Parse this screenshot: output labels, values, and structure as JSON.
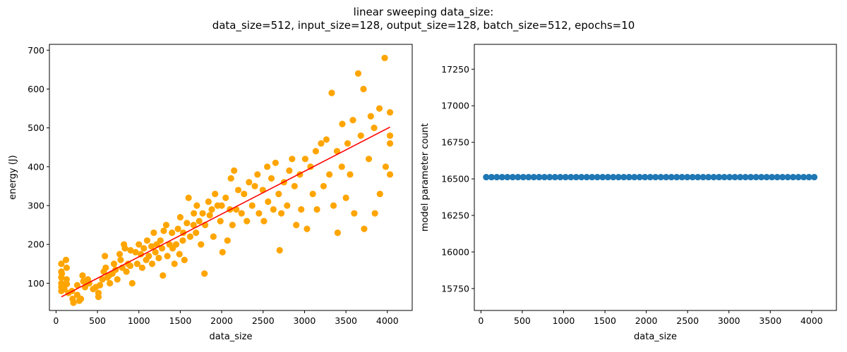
{
  "figure": {
    "title_line1": "linear sweeping data_size:",
    "title_line2": "data_size=512, input_size=128, output_size=128, batch_size=512, epochs=10"
  },
  "chart_data": [
    {
      "type": "scatter",
      "xlabel": "data_size",
      "ylabel": "energy (J)",
      "xlim": [
        -80,
        4300
      ],
      "ylim": [
        30,
        715
      ],
      "xticks": [
        0,
        500,
        1000,
        1500,
        2000,
        2500,
        3000,
        3500,
        4000
      ],
      "yticks": [
        100,
        200,
        300,
        400,
        500,
        600,
        700
      ],
      "grid": false,
      "series": [
        {
          "kind": "scatter",
          "color": "#ffa500",
          "points": [
            [
              64,
              150
            ],
            [
              64,
              130
            ],
            [
              64,
              115
            ],
            [
              64,
              100
            ],
            [
              64,
              90
            ],
            [
              64,
              80
            ],
            [
              70,
              125
            ],
            [
              80,
              95
            ],
            [
              100,
              85
            ],
            [
              120,
              160
            ],
            [
              128,
              140
            ],
            [
              128,
              110
            ],
            [
              130,
              98
            ],
            [
              150,
              75
            ],
            [
              192,
              80
            ],
            [
              200,
              60
            ],
            [
              210,
              50
            ],
            [
              256,
              70
            ],
            [
              256,
              95
            ],
            [
              280,
              55
            ],
            [
              300,
              60
            ],
            [
              320,
              120
            ],
            [
              330,
              105
            ],
            [
              350,
              90
            ],
            [
              384,
              110
            ],
            [
              400,
              100
            ],
            [
              448,
              85
            ],
            [
              480,
              90
            ],
            [
              512,
              65
            ],
            [
              512,
              75
            ],
            [
              530,
              95
            ],
            [
              560,
              110
            ],
            [
              576,
              130
            ],
            [
              590,
              170
            ],
            [
              600,
              140
            ],
            [
              620,
              115
            ],
            [
              640,
              120
            ],
            [
              650,
              100
            ],
            [
              680,
              125
            ],
            [
              700,
              150
            ],
            [
              720,
              135
            ],
            [
              740,
              110
            ],
            [
              768,
              175
            ],
            [
              780,
              160
            ],
            [
              800,
              140
            ],
            [
              820,
              200
            ],
            [
              832,
              190
            ],
            [
              850,
              130
            ],
            [
              870,
              150
            ],
            [
              896,
              145
            ],
            [
              900,
              185
            ],
            [
              920,
              100
            ],
            [
              960,
              180
            ],
            [
              980,
              150
            ],
            [
              1000,
              200
            ],
            [
              1024,
              175
            ],
            [
              1040,
              140
            ],
            [
              1060,
              190
            ],
            [
              1088,
              160
            ],
            [
              1100,
              210
            ],
            [
              1120,
              170
            ],
            [
              1152,
              195
            ],
            [
              1160,
              150
            ],
            [
              1180,
              230
            ],
            [
              1200,
              180
            ],
            [
              1216,
              200
            ],
            [
              1240,
              165
            ],
            [
              1260,
              210
            ],
            [
              1280,
              190
            ],
            [
              1290,
              120
            ],
            [
              1300,
              235
            ],
            [
              1330,
              250
            ],
            [
              1344,
              170
            ],
            [
              1370,
              200
            ],
            [
              1400,
              230
            ],
            [
              1408,
              190
            ],
            [
              1430,
              150
            ],
            [
              1450,
              200
            ],
            [
              1472,
              240
            ],
            [
              1490,
              175
            ],
            [
              1500,
              270
            ],
            [
              1530,
              210
            ],
            [
              1536,
              230
            ],
            [
              1550,
              160
            ],
            [
              1580,
              255
            ],
            [
              1600,
              320
            ],
            [
              1620,
              220
            ],
            [
              1660,
              250
            ],
            [
              1664,
              280
            ],
            [
              1690,
              230
            ],
            [
              1700,
              300
            ],
            [
              1728,
              260
            ],
            [
              1750,
              200
            ],
            [
              1770,
              280
            ],
            [
              1792,
              125
            ],
            [
              1800,
              250
            ],
            [
              1840,
              310
            ],
            [
              1856,
              275
            ],
            [
              1880,
              290
            ],
            [
              1900,
              220
            ],
            [
              1920,
              330
            ],
            [
              1950,
              300
            ],
            [
              1984,
              260
            ],
            [
              2000,
              300
            ],
            [
              2010,
              180
            ],
            [
              2048,
              320
            ],
            [
              2070,
              210
            ],
            [
              2100,
              290
            ],
            [
              2112,
              370
            ],
            [
              2130,
              250
            ],
            [
              2150,
              390
            ],
            [
              2176,
              290
            ],
            [
              2200,
              340
            ],
            [
              2240,
              280
            ],
            [
              2270,
              330
            ],
            [
              2304,
              260
            ],
            [
              2330,
              360
            ],
            [
              2368,
              300
            ],
            [
              2400,
              350
            ],
            [
              2432,
              380
            ],
            [
              2450,
              280
            ],
            [
              2496,
              340
            ],
            [
              2510,
              260
            ],
            [
              2550,
              400
            ],
            [
              2560,
              310
            ],
            [
              2600,
              370
            ],
            [
              2624,
              290
            ],
            [
              2650,
              410
            ],
            [
              2688,
              330
            ],
            [
              2700,
              185
            ],
            [
              2720,
              280
            ],
            [
              2752,
              360
            ],
            [
              2790,
              300
            ],
            [
              2816,
              390
            ],
            [
              2850,
              420
            ],
            [
              2880,
              350
            ],
            [
              2900,
              250
            ],
            [
              2944,
              380
            ],
            [
              2960,
              290
            ],
            [
              3008,
              420
            ],
            [
              3030,
              240
            ],
            [
              3072,
              400
            ],
            [
              3100,
              330
            ],
            [
              3136,
              440
            ],
            [
              3150,
              290
            ],
            [
              3200,
              460
            ],
            [
              3230,
              350
            ],
            [
              3264,
              470
            ],
            [
              3300,
              380
            ],
            [
              3328,
              590
            ],
            [
              3350,
              300
            ],
            [
              3392,
              440
            ],
            [
              3400,
              230
            ],
            [
              3450,
              400
            ],
            [
              3456,
              510
            ],
            [
              3500,
              320
            ],
            [
              3520,
              460
            ],
            [
              3550,
              380
            ],
            [
              3584,
              520
            ],
            [
              3600,
              280
            ],
            [
              3648,
              640
            ],
            [
              3680,
              480
            ],
            [
              3712,
              600
            ],
            [
              3720,
              240
            ],
            [
              3776,
              420
            ],
            [
              3800,
              530
            ],
            [
              3840,
              500
            ],
            [
              3850,
              280
            ],
            [
              3904,
              550
            ],
            [
              3910,
              330
            ],
            [
              3968,
              680
            ],
            [
              3980,
              400
            ],
            [
              4032,
              460
            ],
            [
              4032,
              540
            ],
            [
              4032,
              480
            ],
            [
              4032,
              380
            ]
          ]
        },
        {
          "kind": "line",
          "color": "#ff0000",
          "points": [
            [
              64,
              65
            ],
            [
              4032,
              502
            ]
          ]
        }
      ]
    },
    {
      "type": "scatter",
      "xlabel": "data_size",
      "ylabel": "model parameter count",
      "xlim": [
        -80,
        4300
      ],
      "ylim": [
        15600,
        17420
      ],
      "xticks": [
        0,
        500,
        1000,
        1500,
        2000,
        2500,
        3000,
        3500,
        4000
      ],
      "yticks": [
        15750,
        16000,
        16250,
        16500,
        16750,
        17000,
        17250
      ],
      "grid": false,
      "series": [
        {
          "kind": "scatter",
          "color": "#1f77b4",
          "y_constant": 16512,
          "x_start": 64,
          "x_end": 4032,
          "x_step": 64
        }
      ]
    }
  ]
}
